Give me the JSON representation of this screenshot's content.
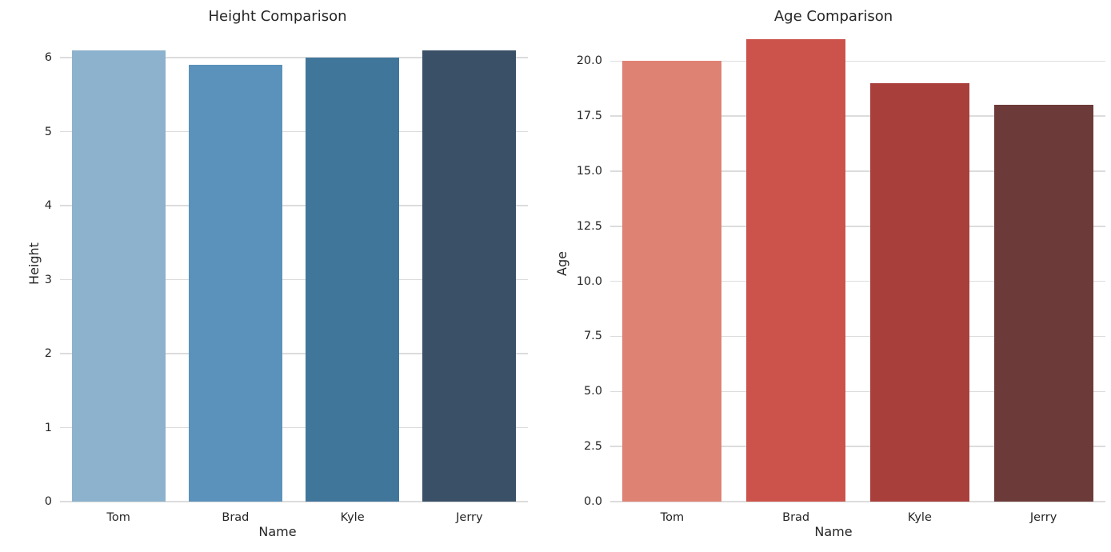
{
  "style": {
    "background": "#ffffff",
    "grid_color": "#dcdcdc",
    "text_color": "#262626"
  },
  "chart_data": [
    {
      "type": "bar",
      "title": "Height Comparison",
      "xlabel": "Name",
      "ylabel": "Height",
      "categories": [
        "Tom",
        "Brad",
        "Kyle",
        "Jerry"
      ],
      "values": [
        6.1,
        5.9,
        6.0,
        6.1
      ],
      "bar_colors": [
        "#8cb2cd",
        "#5b92bb",
        "#41769b",
        "#395066"
      ],
      "ylim": [
        0,
        6.4
      ],
      "yticks": [
        0,
        1,
        2,
        3,
        4,
        5,
        6
      ],
      "ytick_labels": [
        "0",
        "1",
        "2",
        "3",
        "4",
        "5",
        "6"
      ],
      "grid": true,
      "legend_position": "none"
    },
    {
      "type": "bar",
      "title": "Age Comparison",
      "xlabel": "Name",
      "ylabel": "Age",
      "categories": [
        "Tom",
        "Brad",
        "Kyle",
        "Jerry"
      ],
      "values": [
        20,
        21,
        19,
        18
      ],
      "bar_colors": [
        "#de8274",
        "#cc534b",
        "#a93f3b",
        "#6c3a38"
      ],
      "ylim": [
        0,
        21.5
      ],
      "yticks": [
        0,
        2.5,
        5,
        7.5,
        10,
        12.5,
        15,
        17.5,
        20
      ],
      "ytick_labels": [
        "0.0",
        "2.5",
        "5.0",
        "7.5",
        "10.0",
        "12.5",
        "15.0",
        "17.5",
        "20.0"
      ],
      "grid": true,
      "legend_position": "none"
    }
  ]
}
